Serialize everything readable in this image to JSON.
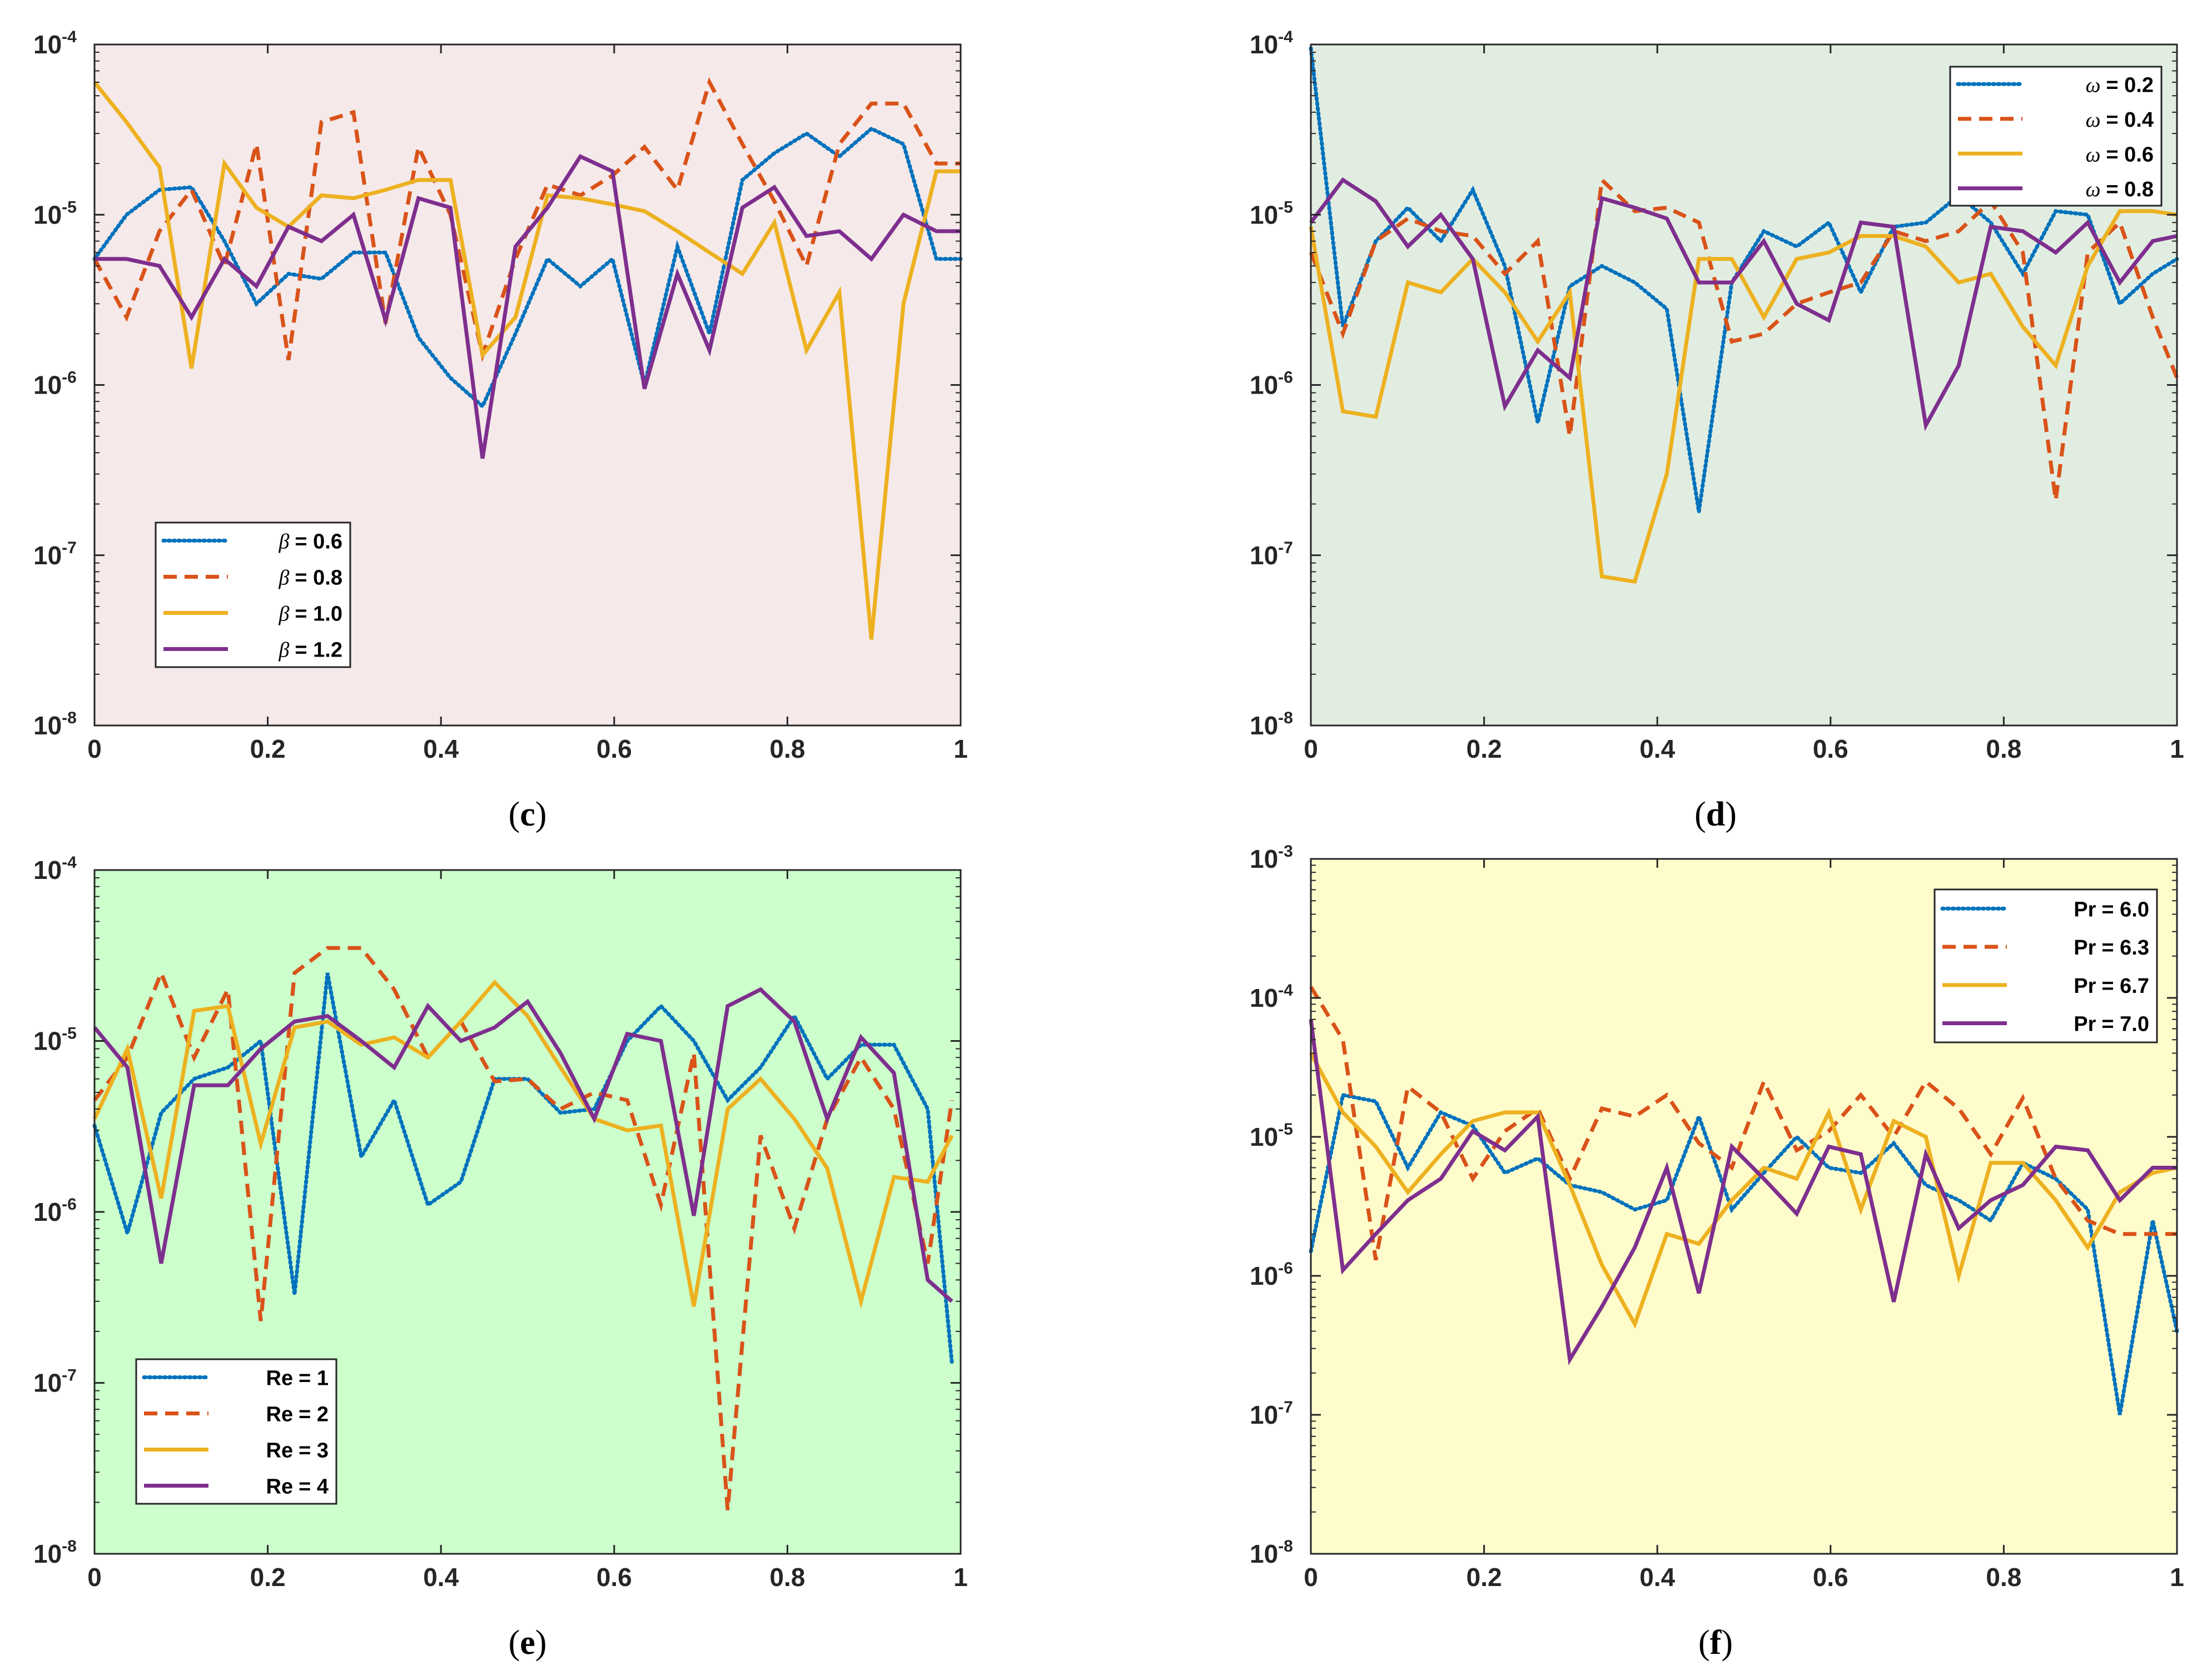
{
  "colors": {
    "series1": "#0072BD",
    "series2": "#D95319",
    "series3": "#EDB120",
    "series4": "#7E2F8E",
    "axis": "#262626"
  },
  "chart_data": [
    {
      "id": "c",
      "type": "line",
      "caption": {
        "open": "(",
        "letter": "c",
        "close": ")"
      },
      "background": "#f5e9e9",
      "yscale": "log",
      "xlim": [
        0,
        1
      ],
      "ylim_exp": [
        -8,
        -4
      ],
      "xticks": [
        "0",
        "0.2",
        "0.4",
        "0.6",
        "0.8",
        "1"
      ],
      "yticks": [
        {
          "base": "10",
          "exp": "-8"
        },
        {
          "base": "10",
          "exp": "-7"
        },
        {
          "base": "10",
          "exp": "-6"
        },
        {
          "base": "10",
          "exp": "-5"
        },
        {
          "base": "10",
          "exp": "-4"
        }
      ],
      "legend": {
        "position": "bottom-left",
        "var": "β",
        "var_italic": true
      },
      "x": [
        0,
        0.037,
        0.075,
        0.112,
        0.15,
        0.187,
        0.224,
        0.262,
        0.299,
        0.336,
        0.374,
        0.411,
        0.448,
        0.486,
        0.523,
        0.561,
        0.598,
        0.635,
        0.673,
        0.71,
        0.748,
        0.785,
        0.822,
        0.86,
        0.897,
        0.934,
        0.972,
        1.0
      ],
      "series": [
        {
          "name": "β = 0.6",
          "label": "= 0.6",
          "style": "dotted",
          "values": [
            5.5e-06,
            1e-05,
            1.4e-05,
            1.45e-05,
            7e-06,
            3e-06,
            4.5e-06,
            4.2e-06,
            6e-06,
            6e-06,
            1.9e-06,
            1.1e-06,
            7.5e-07,
            2e-06,
            5.5e-06,
            3.8e-06,
            5.5e-06,
            1e-06,
            6.5e-06,
            2e-06,
            1.6e-05,
            2.3e-05,
            3e-05,
            2.2e-05,
            3.2e-05,
            2.6e-05,
            5.5e-06,
            5.5e-06
          ]
        },
        {
          "name": "β = 0.8",
          "label": "= 0.8",
          "style": "dashed",
          "values": [
            5.5e-06,
            2.5e-06,
            8e-06,
            1.4e-05,
            5e-06,
            2.6e-05,
            1.4e-06,
            3.5e-05,
            4e-05,
            2.3e-06,
            2.5e-05,
            1e-05,
            1.5e-06,
            5.5e-06,
            1.5e-05,
            1.3e-05,
            1.7e-05,
            2.5e-05,
            1.4e-05,
            6e-05,
            2.6e-05,
            1.2e-05,
            5e-06,
            2.6e-05,
            4.5e-05,
            4.5e-05,
            2e-05,
            2e-05
          ]
        },
        {
          "name": "β = 1.0",
          "label": "= 1.0",
          "style": "solid",
          "values": [
            6e-05,
            3.5e-05,
            1.9e-05,
            1.25e-06,
            2e-05,
            1.1e-05,
            8.5e-06,
            1.3e-05,
            1.25e-05,
            1.4e-05,
            1.6e-05,
            1.6e-05,
            1.5e-06,
            2.5e-06,
            1.3e-05,
            1.25e-05,
            1.15e-05,
            1.05e-05,
            8e-06,
            6e-06,
            4.5e-06,
            9e-06,
            1.6e-06,
            3.5e-06,
            3.2e-08,
            3e-06,
            1.8e-05,
            1.8e-05
          ]
        },
        {
          "name": "β = 1.2",
          "label": "= 1.2",
          "style": "solid",
          "values": [
            5.5e-06,
            5.5e-06,
            5e-06,
            2.5e-06,
            5.5e-06,
            3.8e-06,
            8.5e-06,
            7e-06,
            1e-05,
            2.4e-06,
            1.25e-05,
            1.1e-05,
            3.7e-07,
            6.5e-06,
            1.1e-05,
            2.2e-05,
            1.8e-05,
            9.5e-07,
            4.5e-06,
            1.6e-06,
            1.1e-05,
            1.45e-05,
            7.5e-06,
            8e-06,
            5.5e-06,
            1e-05,
            8e-06,
            8e-06
          ]
        }
      ]
    },
    {
      "id": "d",
      "type": "line",
      "caption": {
        "open": "(",
        "letter": "d",
        "close": ")"
      },
      "background": "#e2ede1",
      "yscale": "log",
      "xlim": [
        0,
        1
      ],
      "ylim_exp": [
        -8,
        -4
      ],
      "xticks": [
        "0",
        "0.2",
        "0.4",
        "0.6",
        "0.8",
        "1"
      ],
      "yticks": [
        {
          "base": "10",
          "exp": "-8"
        },
        {
          "base": "10",
          "exp": "-7"
        },
        {
          "base": "10",
          "exp": "-6"
        },
        {
          "base": "10",
          "exp": "-5"
        },
        {
          "base": "10",
          "exp": "-4"
        }
      ],
      "legend": {
        "position": "top-right",
        "var": "ω",
        "var_italic": true
      },
      "x": [
        0,
        0.037,
        0.075,
        0.112,
        0.15,
        0.187,
        0.224,
        0.262,
        0.299,
        0.336,
        0.374,
        0.411,
        0.448,
        0.486,
        0.523,
        0.561,
        0.598,
        0.635,
        0.673,
        0.71,
        0.748,
        0.785,
        0.822,
        0.86,
        0.897,
        0.934,
        0.972,
        1.0
      ],
      "series": [
        {
          "name": "ω = 0.2",
          "label": "= 0.2",
          "style": "dotted",
          "values": [
            9.5e-05,
            2.2e-06,
            7e-06,
            1.1e-05,
            7e-06,
            1.4e-05,
            5e-06,
            6e-07,
            3.8e-06,
            5e-06,
            4e-06,
            2.8e-06,
            1.8e-07,
            4e-06,
            8e-06,
            6.5e-06,
            9e-06,
            3.5e-06,
            8.5e-06,
            9e-06,
            1.3e-05,
            9e-06,
            4.5e-06,
            1.05e-05,
            1e-05,
            3e-06,
            4.5e-06,
            5.5e-06
          ]
        },
        {
          "name": "ω = 0.4",
          "label": "= 0.4",
          "style": "dashed",
          "values": [
            6e-06,
            2e-06,
            7e-06,
            9.5e-06,
            8e-06,
            7.5e-06,
            4.5e-06,
            7e-06,
            5e-07,
            1.6e-05,
            1.05e-05,
            1.1e-05,
            9e-06,
            1.8e-06,
            2e-06,
            3e-06,
            3.5e-06,
            4e-06,
            8e-06,
            7e-06,
            8e-06,
            1.2e-05,
            6e-06,
            2.1e-07,
            6e-06,
            9e-06,
            2.5e-06,
            1.1e-06
          ]
        },
        {
          "name": "ω = 0.6",
          "label": "= 0.6",
          "style": "solid",
          "values": [
            8.5e-06,
            7e-07,
            6.5e-07,
            4e-06,
            3.5e-06,
            5.5e-06,
            3.5e-06,
            1.8e-06,
            3.5e-06,
            7.5e-08,
            7e-08,
            3e-07,
            5.5e-06,
            5.5e-06,
            2.5e-06,
            5.5e-06,
            6e-06,
            7.5e-06,
            7.5e-06,
            6.5e-06,
            4e-06,
            4.5e-06,
            2.2e-06,
            1.3e-06,
            5e-06,
            1.05e-05,
            1.05e-05,
            1e-05
          ]
        },
        {
          "name": "ω = 0.8",
          "label": "= 0.8",
          "style": "solid",
          "values": [
            9e-06,
            1.6e-05,
            1.2e-05,
            6.5e-06,
            1e-05,
            5.5e-06,
            7.5e-07,
            1.6e-06,
            1.1e-06,
            1.25e-05,
            1.1e-05,
            9.5e-06,
            4e-06,
            4e-06,
            7e-06,
            3e-06,
            2.4e-06,
            9e-06,
            8.5e-06,
            5.8e-07,
            1.3e-06,
            8.5e-06,
            8e-06,
            6e-06,
            9e-06,
            4e-06,
            7e-06,
            7.5e-06
          ]
        }
      ]
    },
    {
      "id": "e",
      "type": "line",
      "caption": {
        "open": "(",
        "letter": "e",
        "close": ")"
      },
      "background": "#ccffcc",
      "yscale": "log",
      "xlim": [
        0,
        1
      ],
      "ylim_exp": [
        -8,
        -4
      ],
      "xticks": [
        "0",
        "0.2",
        "0.4",
        "0.6",
        "0.8",
        "1"
      ],
      "yticks": [
        {
          "base": "10",
          "exp": "-8"
        },
        {
          "base": "10",
          "exp": "-7"
        },
        {
          "base": "10",
          "exp": "-6"
        },
        {
          "base": "10",
          "exp": "-5"
        },
        {
          "base": "10",
          "exp": "-4"
        }
      ],
      "legend": {
        "position": "bottom-left",
        "var": "Re",
        "var_italic": false
      },
      "x": [
        0,
        0.038,
        0.077,
        0.115,
        0.154,
        0.192,
        0.231,
        0.269,
        0.308,
        0.346,
        0.385,
        0.423,
        0.462,
        0.5,
        0.538,
        0.577,
        0.615,
        0.654,
        0.692,
        0.731,
        0.769,
        0.808,
        0.846,
        0.885,
        0.923,
        0.962,
        0.99
      ],
      "series": [
        {
          "name": "Re = 1",
          "label": "= 1",
          "style": "dotted",
          "values": [
            3.2e-06,
            7.5e-07,
            3.8e-06,
            6e-06,
            7e-06,
            1e-05,
            3.3e-07,
            2.5e-05,
            2.1e-06,
            4.5e-06,
            1.1e-06,
            1.5e-06,
            6e-06,
            6e-06,
            3.8e-06,
            4e-06,
            1e-05,
            1.6e-05,
            1e-05,
            4.5e-06,
            7e-06,
            1.4e-05,
            6e-06,
            9.5e-06,
            9.5e-06,
            4e-06,
            1.3e-07
          ]
        },
        {
          "name": "Re = 2",
          "label": "= 2",
          "style": "dashed",
          "values": [
            4.5e-06,
            8e-06,
            2.5e-05,
            8e-06,
            2e-05,
            2.3e-07,
            2.5e-05,
            3.5e-05,
            3.5e-05,
            2e-05,
            8e-06,
            1.3e-05,
            5.8e-06,
            6e-06,
            4e-06,
            5e-06,
            4.5e-06,
            1.1e-06,
            8.5e-06,
            1.8e-08,
            2.8e-06,
            8e-07,
            3.5e-06,
            8e-06,
            4e-06,
            5e-07,
            4.5e-06
          ]
        },
        {
          "name": "Re = 3",
          "label": "= 3",
          "style": "solid",
          "values": [
            3.5e-06,
            9e-06,
            1.2e-06,
            1.5e-05,
            1.6e-05,
            2.5e-06,
            1.2e-05,
            1.3e-05,
            9.5e-06,
            1.05e-05,
            8e-06,
            1.3e-05,
            2.2e-05,
            1.4e-05,
            7e-06,
            3.5e-06,
            3e-06,
            3.2e-06,
            2.8e-07,
            4e-06,
            6e-06,
            3.5e-06,
            1.8e-06,
            3e-07,
            1.6e-06,
            1.5e-06,
            2.8e-06
          ]
        },
        {
          "name": "Re = 4",
          "label": "= 4",
          "style": "solid",
          "values": [
            1.2e-05,
            7e-06,
            5e-07,
            5.5e-06,
            5.5e-06,
            9e-06,
            1.3e-05,
            1.4e-05,
            1e-05,
            7e-06,
            1.6e-05,
            1e-05,
            1.2e-05,
            1.7e-05,
            8.5e-06,
            3.5e-06,
            1.1e-05,
            1e-05,
            9.5e-07,
            1.6e-05,
            2e-05,
            1.3e-05,
            3.5e-06,
            1.05e-05,
            6.5e-06,
            4e-07,
            3e-07
          ]
        }
      ]
    },
    {
      "id": "f",
      "type": "line",
      "caption": {
        "open": "(",
        "letter": "f",
        "close": ")"
      },
      "background": "#fffccc",
      "yscale": "log",
      "xlim": [
        0,
        1
      ],
      "ylim_exp": [
        -8,
        -3
      ],
      "xticks": [
        "0",
        "0.2",
        "0.4",
        "0.6",
        "0.8",
        "1"
      ],
      "yticks": [
        {
          "base": "10",
          "exp": "-8"
        },
        {
          "base": "10",
          "exp": "-7"
        },
        {
          "base": "10",
          "exp": "-6"
        },
        {
          "base": "10",
          "exp": "-5"
        },
        {
          "base": "10",
          "exp": "-4"
        },
        {
          "base": "10",
          "exp": "-3"
        }
      ],
      "legend": {
        "position": "top-right",
        "var": "Pr",
        "var_italic": false
      },
      "x": [
        0,
        0.037,
        0.075,
        0.112,
        0.15,
        0.187,
        0.224,
        0.262,
        0.299,
        0.336,
        0.374,
        0.411,
        0.448,
        0.486,
        0.523,
        0.561,
        0.598,
        0.635,
        0.673,
        0.71,
        0.748,
        0.785,
        0.822,
        0.86,
        0.897,
        0.934,
        0.972,
        1.0
      ],
      "series": [
        {
          "name": "Pr = 6.0",
          "label": "= 6.0",
          "style": "dotted",
          "values": [
            1.5e-06,
            2e-05,
            1.8e-05,
            6e-06,
            1.5e-05,
            1.2e-05,
            5.5e-06,
            7e-06,
            4.5e-06,
            4e-06,
            3e-06,
            3.5e-06,
            1.4e-05,
            3e-06,
            5.5e-06,
            1e-05,
            6e-06,
            5.5e-06,
            9e-06,
            4.5e-06,
            3.5e-06,
            2.5e-06,
            6.5e-06,
            5e-06,
            3e-06,
            1e-07,
            2.5e-06,
            4e-07
          ]
        },
        {
          "name": "Pr = 6.3",
          "label": "= 6.3",
          "style": "dashed",
          "values": [
            0.00012,
            5e-05,
            1.3e-06,
            2.3e-05,
            1.5e-05,
            5e-06,
            1.1e-05,
            1.6e-05,
            5e-06,
            1.6e-05,
            1.4e-05,
            2e-05,
            9e-06,
            6e-06,
            2.5e-05,
            8e-06,
            1.1e-05,
            2e-05,
            1e-05,
            2.5e-05,
            1.6e-05,
            7.5e-06,
            1.9e-05,
            5e-06,
            2.5e-06,
            2e-06,
            2e-06,
            2e-06
          ]
        },
        {
          "name": "Pr = 6.7",
          "label": "= 6.7",
          "style": "solid",
          "values": [
            4e-05,
            1.5e-05,
            8.5e-06,
            4e-06,
            7.5e-06,
            1.3e-05,
            1.5e-05,
            1.5e-05,
            4.5e-06,
            1.2e-06,
            4.5e-07,
            2e-06,
            1.7e-06,
            3.5e-06,
            6e-06,
            5e-06,
            1.5e-05,
            3e-06,
            1.3e-05,
            1e-05,
            1e-06,
            6.5e-06,
            6.5e-06,
            3.5e-06,
            1.6e-06,
            4e-06,
            5.5e-06,
            6e-06
          ]
        },
        {
          "name": "Pr = 7.0",
          "label": "= 7.0",
          "style": "solid",
          "values": [
            7e-05,
            1.1e-06,
            2e-06,
            3.5e-06,
            5e-06,
            1.1e-05,
            8e-06,
            1.4e-05,
            2.5e-07,
            6e-07,
            1.6e-06,
            6e-06,
            7.5e-07,
            8.5e-06,
            5e-06,
            2.8e-06,
            8.5e-06,
            7.5e-06,
            6.5e-07,
            7.5e-06,
            2.2e-06,
            3.5e-06,
            4.5e-06,
            8.5e-06,
            8e-06,
            3.5e-06,
            6e-06,
            6e-06
          ]
        }
      ]
    }
  ]
}
